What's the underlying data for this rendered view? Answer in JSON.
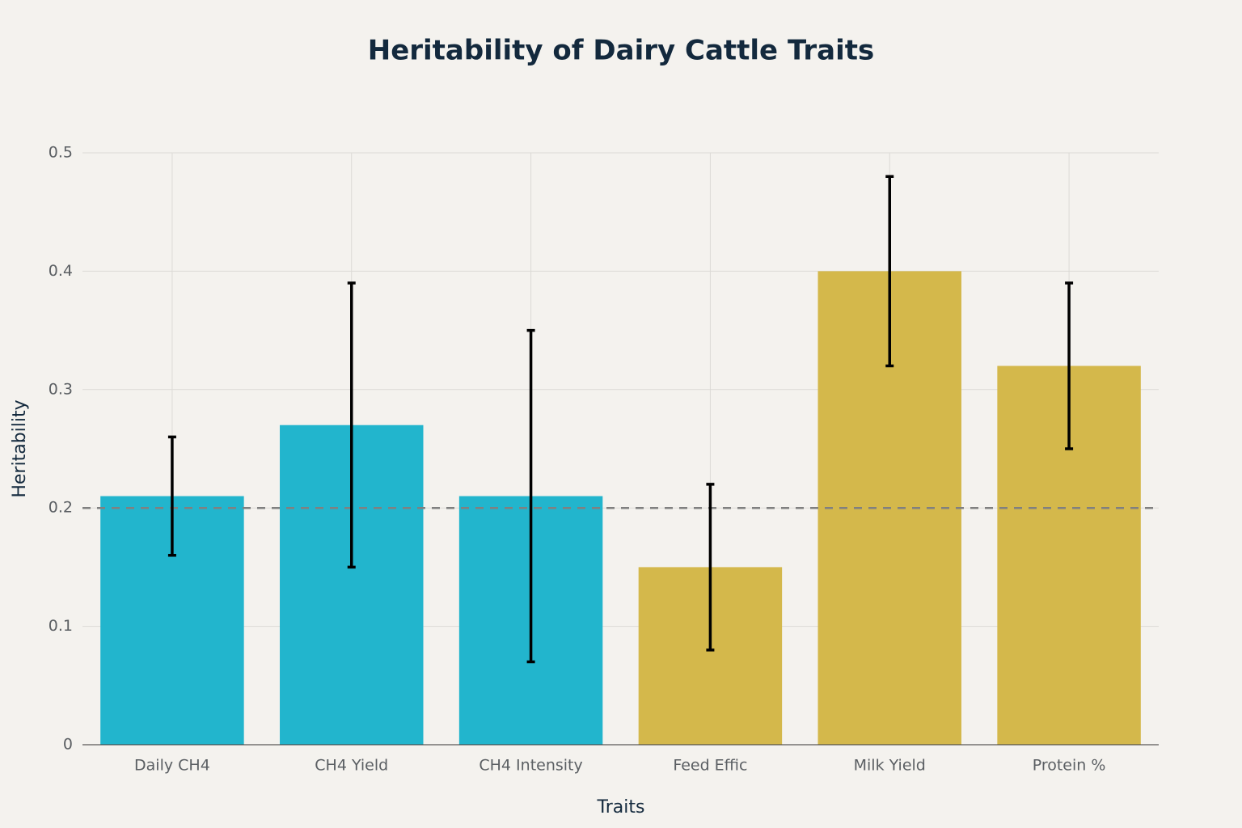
{
  "chart_data": {
    "type": "bar",
    "title": "Heritability of Dairy Cattle Traits",
    "x_label": "Traits",
    "y_label": "Heritability",
    "categories": [
      "Daily CH4",
      "CH4 Yield",
      "CH4 Intensity",
      "Feed Effic",
      "Milk Yield",
      "Protein %"
    ],
    "values": [
      0.21,
      0.27,
      0.21,
      0.15,
      0.4,
      0.32
    ],
    "errors": [
      0.05,
      0.12,
      0.14,
      0.07,
      0.08,
      0.07
    ],
    "colors": [
      "#22b5cd",
      "#22b5cd",
      "#22b5cd",
      "#d4b84b",
      "#d4b84b",
      "#d4b84b"
    ],
    "reference_line": 0.2,
    "ylim": [
      0,
      0.5
    ],
    "yticks": [
      0,
      0.1,
      0.2,
      0.3,
      0.4,
      0.5
    ],
    "grid": true
  }
}
